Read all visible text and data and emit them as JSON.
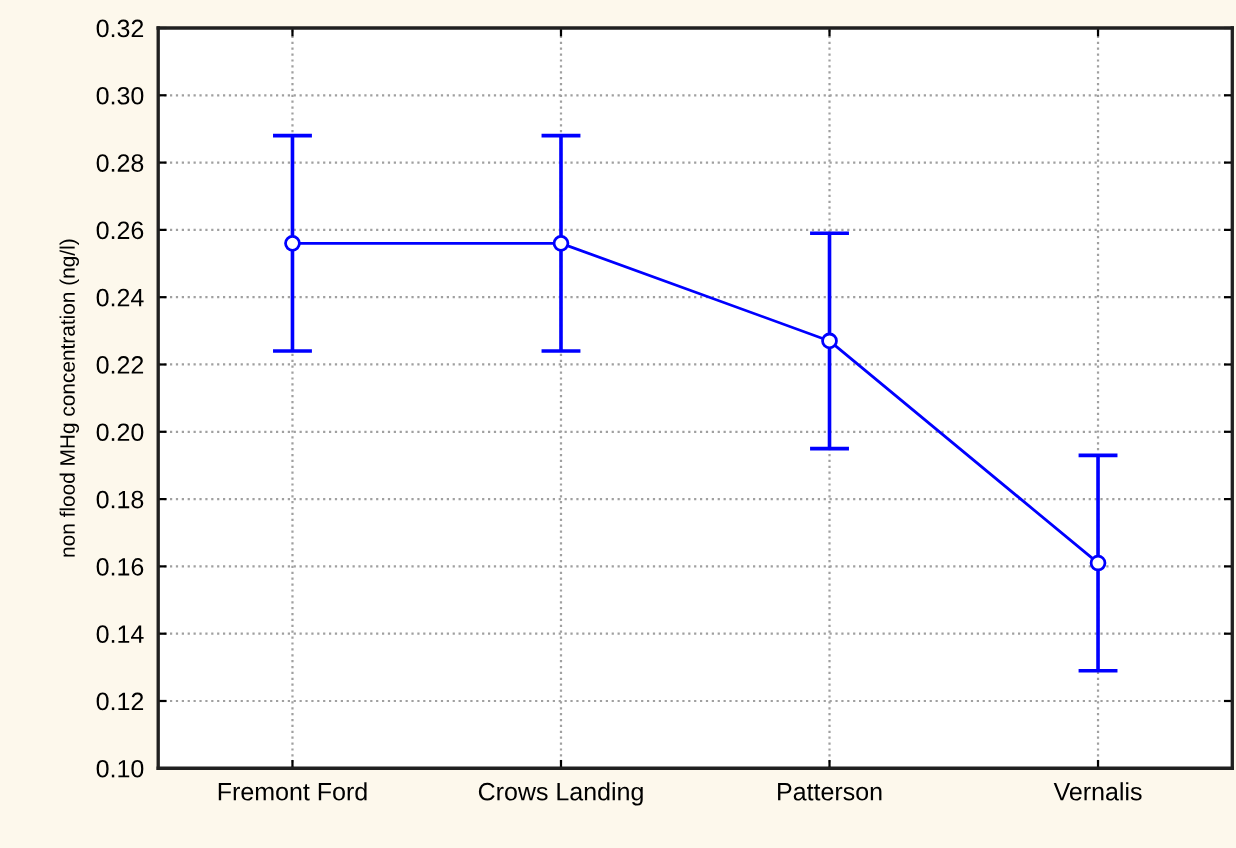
{
  "chart_data": {
    "type": "line",
    "ylabel": "non flood MHg concentration (ng/l)",
    "categories": [
      "Fremont Ford",
      "Crows Landing",
      "Patterson",
      "Vernalis"
    ],
    "series": [
      {
        "color": "#0000ff",
        "values": [
          0.256,
          0.256,
          0.227,
          0.161
        ],
        "errors": [
          0.032,
          0.032,
          0.032,
          0.032
        ]
      }
    ],
    "ylim": [
      0.1,
      0.32
    ],
    "yticks": [
      {
        "value": 0.1,
        "label": "0.10"
      },
      0.12,
      0.14,
      0.16,
      0.18,
      {
        "value": 0.2,
        "label": "0.20"
      },
      0.22,
      0.24,
      0.26,
      0.28,
      {
        "value": 0.3,
        "label": "0.30"
      },
      0.32
    ],
    "grid": true,
    "marker": "circle",
    "line_style": "solid"
  }
}
